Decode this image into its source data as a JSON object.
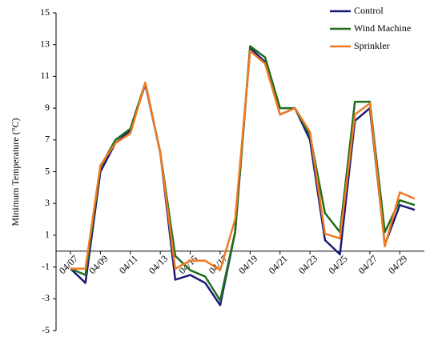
{
  "chart_data": {
    "type": "line",
    "y_label": "Minimum Temperature (°C)",
    "categories": [
      "04/07",
      null,
      "04/09",
      null,
      "04/11",
      null,
      "04/13",
      null,
      "04/15",
      null,
      "04/17",
      null,
      "04/19",
      null,
      "04/21",
      null,
      "04/23",
      null,
      "04/25",
      null,
      "04/27",
      null,
      "04/29",
      null
    ],
    "series": [
      {
        "name": "Control",
        "color": "#1c1c78",
        "values": [
          -1.1,
          -2.0,
          5.0,
          6.8,
          7.6,
          10.5,
          6.2,
          -1.8,
          -1.5,
          -2.0,
          -3.4,
          1.2,
          12.8,
          11.9,
          8.6,
          9.0,
          7.0,
          0.7,
          -0.2,
          8.2,
          9.0,
          0.4,
          2.9,
          2.6
        ]
      },
      {
        "name": "Wind Machine",
        "color": "#1e6e1e",
        "values": [
          -1.1,
          -1.5,
          5.3,
          7.0,
          7.7,
          10.6,
          6.2,
          -0.3,
          -1.2,
          -1.6,
          -3.1,
          1.2,
          12.9,
          12.2,
          9.0,
          9.0,
          7.3,
          2.4,
          1.2,
          9.4,
          9.4,
          1.2,
          3.2,
          2.9
        ]
      },
      {
        "name": "Sprinkler",
        "color": "#f07a22",
        "values": [
          -1.1,
          -1.1,
          5.4,
          6.8,
          7.4,
          10.6,
          6.2,
          -1.1,
          -0.6,
          -0.6,
          -1.2,
          2.0,
          12.6,
          11.8,
          8.6,
          9.0,
          7.5,
          1.1,
          0.8,
          8.6,
          9.3,
          0.3,
          3.7,
          3.3
        ]
      }
    ],
    "ylim": [
      -5,
      15
    ],
    "yticks": [
      -5,
      -3,
      -1,
      1,
      3,
      5,
      7,
      9,
      11,
      13,
      15
    ],
    "grid": false,
    "legend": "upper-right"
  }
}
